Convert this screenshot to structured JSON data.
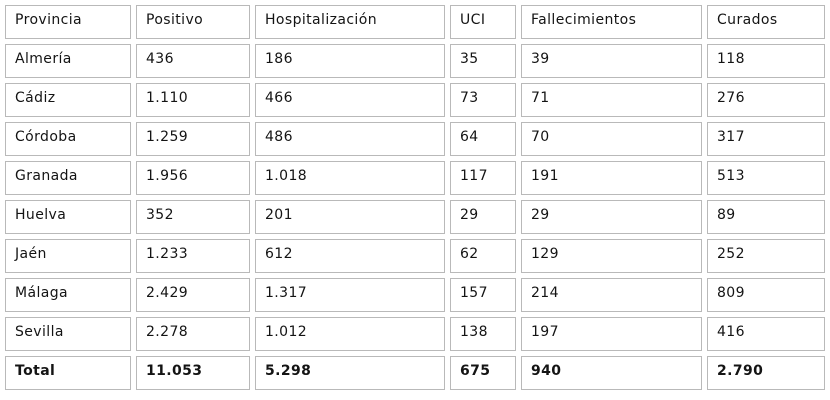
{
  "table": {
    "columns": [
      "Provincia",
      "Positivo",
      "Hospitalización",
      "UCI",
      "Fallecimientos",
      "Curados"
    ],
    "rows": [
      [
        "Almería",
        "436",
        "186",
        "35",
        "39",
        "118"
      ],
      [
        "Cádiz",
        "1.110",
        "466",
        "73",
        "71",
        "276"
      ],
      [
        "Córdoba",
        "1.259",
        "486",
        "64",
        "70",
        "317"
      ],
      [
        "Granada",
        "1.956",
        "1.018",
        "117",
        "191",
        "513"
      ],
      [
        "Huelva",
        "352",
        "201",
        "29",
        "29",
        "89"
      ],
      [
        "Jaén",
        "1.233",
        "612",
        "62",
        "129",
        "252"
      ],
      [
        "Málaga",
        "2.429",
        "1.317",
        "157",
        "214",
        "809"
      ],
      [
        "Sevilla",
        "2.278",
        "1.012",
        "138",
        "197",
        "416"
      ]
    ],
    "total_row": [
      "Total",
      "11.053",
      "5.298",
      "675",
      "940",
      "2.790"
    ],
    "colors": {
      "border": "#b9b9b9",
      "text": "#141414",
      "background": "#ffffff"
    }
  },
  "chart_data": {
    "type": "table",
    "title": "",
    "columns": [
      "Provincia",
      "Positivo",
      "Hospitalización",
      "UCI",
      "Fallecimientos",
      "Curados"
    ],
    "rows": [
      {
        "provincia": "Almería",
        "positivo": 436,
        "hospitalizacion": 186,
        "uci": 35,
        "fallecimientos": 39,
        "curados": 118
      },
      {
        "provincia": "Cádiz",
        "positivo": 1110,
        "hospitalizacion": 466,
        "uci": 73,
        "fallecimientos": 71,
        "curados": 276
      },
      {
        "provincia": "Córdoba",
        "positivo": 1259,
        "hospitalizacion": 486,
        "uci": 64,
        "fallecimientos": 70,
        "curados": 317
      },
      {
        "provincia": "Granada",
        "positivo": 1956,
        "hospitalizacion": 1018,
        "uci": 117,
        "fallecimientos": 191,
        "curados": 513
      },
      {
        "provincia": "Huelva",
        "positivo": 352,
        "hospitalizacion": 201,
        "uci": 29,
        "fallecimientos": 29,
        "curados": 89
      },
      {
        "provincia": "Jaén",
        "positivo": 1233,
        "hospitalizacion": 612,
        "uci": 62,
        "fallecimientos": 129,
        "curados": 252
      },
      {
        "provincia": "Málaga",
        "positivo": 2429,
        "hospitalizacion": 1317,
        "uci": 157,
        "fallecimientos": 214,
        "curados": 809
      },
      {
        "provincia": "Sevilla",
        "positivo": 2278,
        "hospitalizacion": 1012,
        "uci": 138,
        "fallecimientos": 197,
        "curados": 416
      },
      {
        "provincia": "Total",
        "positivo": 11053,
        "hospitalizacion": 5298,
        "uci": 675,
        "fallecimientos": 940,
        "curados": 2790
      }
    ],
    "number_format": "thousands separated by dot (es-ES)"
  }
}
